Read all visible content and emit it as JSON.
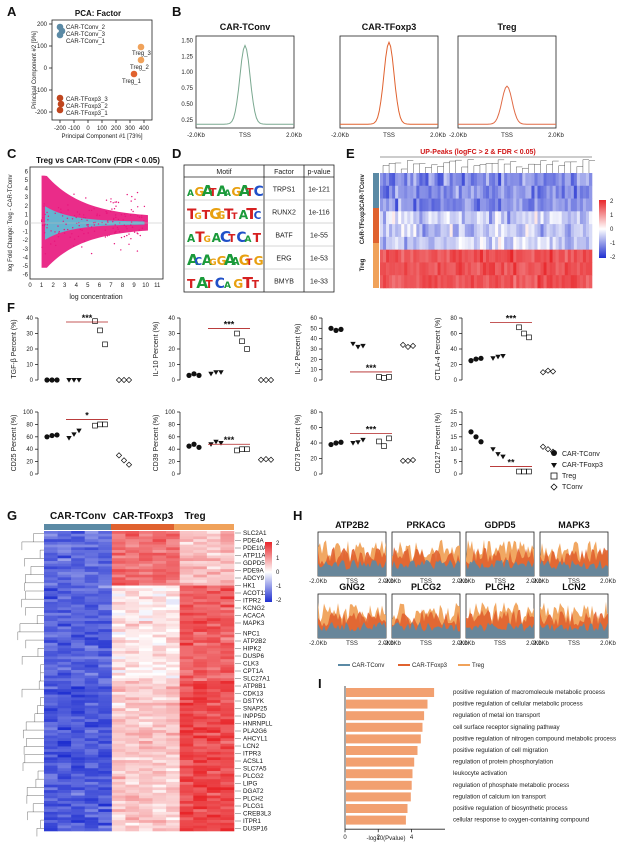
{
  "panel_letters": [
    "A",
    "B",
    "C",
    "D",
    "E",
    "F",
    "G",
    "H",
    "I"
  ],
  "colors": {
    "conv": "#5b8aa5",
    "foxp3": "#e0622f",
    "treg": "#f0a25a",
    "pink": "#e8157c",
    "cyan": "#5fbbd4",
    "hm_high": "#e8262a",
    "hm_low": "#1f2fd0",
    "bar": "#f2a070"
  },
  "panelA": {
    "title": "PCA: Factor",
    "xlabel": "Principal Component #1 [73%]",
    "ylabel": "Principal Component #2 [9%]",
    "xticks": [
      "-200",
      "-100",
      "0",
      "100",
      "200",
      "300",
      "400"
    ],
    "yticks": [
      "-200",
      "-100",
      "0",
      "100",
      "200"
    ],
    "legend": [
      "CAR-TConv_2",
      "CAR-TConv_3",
      "CAR-TConv_1"
    ],
    "point_labels": [
      "Treg_3",
      "Treg_2",
      "Treg_1",
      "CAR-TFoxp3_3",
      "CAR-TFoxp3_2",
      "CAR-TFoxp3_1"
    ]
  },
  "panelB": {
    "titles": [
      "CAR-TConv",
      "CAR-TFoxp3",
      "Treg"
    ],
    "yticks": [
      "1.50",
      "1.25",
      "1.00",
      "0.75",
      "0.50",
      "0.25"
    ],
    "xticks": [
      "-2.0Kb",
      "TSS",
      "2.0Kb"
    ]
  },
  "panelC": {
    "title": "Treg vs CAR-TConv (FDR < 0.05)",
    "xlabel": "log concentration",
    "ylabel": "log Fold Change: Treg - CAR-TConv",
    "xticks": [
      "0",
      "1",
      "2",
      "3",
      "4",
      "5",
      "6",
      "7",
      "8",
      "9",
      "10",
      "11"
    ],
    "yticks": [
      "6",
      "5",
      "4",
      "3",
      "2",
      "1",
      "0",
      "-1",
      "-2",
      "-3",
      "-4",
      "-5",
      "-6"
    ]
  },
  "panelD": {
    "headers": [
      "Motif",
      "Factor",
      "p-value"
    ],
    "rows": [
      {
        "motif": "AGATAAGATC",
        "factor": "TRPS1",
        "p": "1e-121"
      },
      {
        "motif": "TGTGGTTATC",
        "factor": "RUNX2",
        "p": "1e-116"
      },
      {
        "motif": "ATGACTCAT",
        "factor": "BATF",
        "p": "1e-55"
      },
      {
        "motif": "ACAGGAAGTG",
        "factor": "ERG",
        "p": "1e-53"
      },
      {
        "motif": "TATCAGTT",
        "factor": "BMYB",
        "p": "1e-33"
      }
    ]
  },
  "panelE": {
    "title": "UP-Peaks (logFC > 2 & FDR < 0.05)",
    "row_groups": [
      "CAR-TConv",
      "CAR-TFoxp3",
      "Treg"
    ],
    "scale_ticks": [
      "2",
      "1",
      "0",
      "-1",
      "-2"
    ]
  },
  "panelF": {
    "charts": [
      {
        "ylabel": "TGF-β Percent (%)",
        "yticks": [
          "0",
          "10",
          "20",
          "30",
          "40"
        ],
        "ymax": 40,
        "groups": [
          [
            0,
            0,
            0
          ],
          [
            0,
            0,
            0
          ],
          [
            38,
            32,
            23
          ],
          [
            0,
            0,
            0
          ]
        ],
        "sig": "***"
      },
      {
        "ylabel": "IL-10 Percent (%)",
        "yticks": [
          "0",
          "10",
          "20",
          "30",
          "40"
        ],
        "ymax": 40,
        "groups": [
          [
            3,
            4,
            3
          ],
          [
            4,
            5,
            5
          ],
          [
            30,
            25,
            20
          ],
          [
            0,
            0,
            0
          ]
        ],
        "sig": "***"
      },
      {
        "ylabel": "IL-2 Percent (%)",
        "yticks": [
          "0",
          "10",
          "20",
          "30",
          "40",
          "50",
          "60"
        ],
        "ymax": 60,
        "groups": [
          [
            50,
            48,
            49
          ],
          [
            35,
            32,
            33
          ],
          [
            3,
            2,
            3
          ],
          [
            34,
            32,
            33
          ]
        ],
        "sig": "***"
      },
      {
        "ylabel": "CTLA-4 Percent (%)",
        "yticks": [
          "0",
          "20",
          "40",
          "60",
          "80"
        ],
        "ymax": 80,
        "groups": [
          [
            25,
            27,
            28
          ],
          [
            28,
            30,
            31
          ],
          [
            68,
            60,
            55
          ],
          [
            10,
            12,
            11
          ]
        ],
        "sig": "***"
      },
      {
        "ylabel": "CD25 Percent (%)",
        "yticks": [
          "0",
          "20",
          "40",
          "60",
          "80",
          "100"
        ],
        "ymax": 100,
        "groups": [
          [
            60,
            62,
            63
          ],
          [
            58,
            64,
            70
          ],
          [
            78,
            80,
            80
          ],
          [
            30,
            22,
            15
          ]
        ],
        "sig": "*"
      },
      {
        "ylabel": "CD39 Percent (%)",
        "yticks": [
          "0",
          "20",
          "40",
          "60",
          "80",
          "100"
        ],
        "ymax": 100,
        "groups": [
          [
            45,
            48,
            43
          ],
          [
            48,
            52,
            50
          ],
          [
            38,
            40,
            40
          ],
          [
            23,
            24,
            23
          ]
        ],
        "sig": "***"
      },
      {
        "ylabel": "CD73 Percent (%)",
        "yticks": [
          "0",
          "20",
          "40",
          "60",
          "80"
        ],
        "ymax": 80,
        "groups": [
          [
            38,
            40,
            41
          ],
          [
            40,
            41,
            44
          ],
          [
            42,
            36,
            46
          ],
          [
            17,
            17,
            18
          ]
        ],
        "sig": "***"
      },
      {
        "ylabel": "CD127 Percent (%)",
        "yticks": [
          "0",
          "5",
          "10",
          "15",
          "20",
          "25"
        ],
        "ymax": 25,
        "groups": [
          [
            17,
            15,
            13
          ],
          [
            10,
            8,
            7
          ],
          [
            1,
            1,
            1
          ],
          [
            11,
            10,
            9
          ]
        ],
        "sig": "**"
      }
    ],
    "legend": [
      "CAR-TConv",
      "CAR-TFoxp3",
      "Treg",
      "TConv"
    ]
  },
  "panelG": {
    "col_groups": [
      "CAR-TConv",
      "CAR-TFoxp3",
      "Treg"
    ],
    "scale_ticks": [
      "2",
      "1",
      "0",
      "-1",
      "-2"
    ],
    "genes": [
      "SLC2A1",
      "PDE4A",
      "PDE10A",
      "ATP11A",
      "GDPD5",
      "PDE9A",
      "ADCY9",
      "HK1",
      "ACOT11",
      "ITPR2",
      "KCNG2",
      "ACACA",
      "MAPK3",
      "NPC1",
      "ATP2B2",
      "HIPK2",
      "DUSP6",
      "CLK3",
      "CPT1A",
      "SLC27A1",
      "ATP8B1",
      "CDK13",
      "DSTYK",
      "SNAP25",
      "INPP5D",
      "HNRNPLL",
      "PLA2G6",
      "AHCYL1",
      "LCN2",
      "ITPR3",
      "ACSL1",
      "SLC7A5",
      "PLCG2",
      "LIPG",
      "DGAT2",
      "PLCH2",
      "PLCG1",
      "CREB3L3",
      "ITPR1",
      "DUSP16"
    ]
  },
  "panelH": {
    "genes": [
      "ATP2B2",
      "PRKACG",
      "GDPD5",
      "MAPK3",
      "GNG2",
      "PLCG2",
      "PLCH2",
      "LCN2"
    ],
    "xticks": [
      "-2.0Kb",
      "TSS",
      "2.0Kb"
    ],
    "legend": [
      "CAR-TConv",
      "CAR-TFoxp3",
      "Treg"
    ]
  },
  "panelI": {
    "xlabel": "-log10(Pvalue)",
    "xticks": [
      "0",
      "2",
      "4"
    ],
    "terms": [
      {
        "label": "positive regulation of macromolecule metabolic process",
        "value": 5.3
      },
      {
        "label": "positive regulation of cellular metabolic process",
        "value": 4.9
      },
      {
        "label": "regulation of metal ion transport",
        "value": 4.7
      },
      {
        "label": "cell surface receptor signaling pathway",
        "value": 4.6
      },
      {
        "label": "positive regulation of nitrogen compound metabolic process",
        "value": 4.5
      },
      {
        "label": "positive regulation of cell migration",
        "value": 4.3
      },
      {
        "label": "regulation of protein phosphorylation",
        "value": 4.1
      },
      {
        "label": "leukocyte activation",
        "value": 4.0
      },
      {
        "label": "regulation of phosphate metabolic process",
        "value": 3.95
      },
      {
        "label": "regulation of calcium ion transport",
        "value": 3.9
      },
      {
        "label": "positive regulation of biosynthetic process",
        "value": 3.7
      },
      {
        "label": "cellular response to oxygen-containing compound",
        "value": 3.6
      }
    ]
  }
}
